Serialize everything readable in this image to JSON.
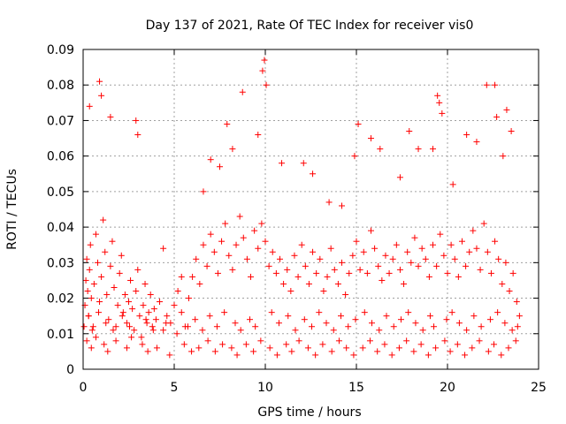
{
  "chart_data": {
    "type": "scatter",
    "title": "Day 137 of 2021, Rate Of TEC Index for receiver vis0",
    "xlabel": "GPS time / hours",
    "ylabel": "ROTI / TECUs",
    "xlim": [
      0,
      25
    ],
    "ylim": [
      0,
      0.09
    ],
    "x_ticks": [
      0,
      5,
      10,
      15,
      20,
      25
    ],
    "x_tick_labels": [
      "0",
      "5",
      "10",
      "15",
      "20",
      "25"
    ],
    "y_ticks": [
      0,
      0.01,
      0.02,
      0.03,
      0.04,
      0.05,
      0.06,
      0.07,
      0.08,
      0.09
    ],
    "y_tick_labels": [
      "0",
      "0.01",
      "0.02",
      "0.03",
      "0.04",
      "0.05",
      "0.06",
      "0.07",
      "0.08",
      "0.09"
    ],
    "grid": true,
    "marker": "+",
    "marker_color": "#ff0000",
    "series": [
      {
        "name": "ROTI",
        "x": [
          0.05,
          0.1,
          0.15,
          0.2,
          0.25,
          0.3,
          0.35,
          0.4,
          0.45,
          0.5,
          0.6,
          0.7,
          0.8,
          0.9,
          1.0,
          1.1,
          1.2,
          1.3,
          1.4,
          1.5,
          1.6,
          1.7,
          1.8,
          1.9,
          2.0,
          2.1,
          2.2,
          2.3,
          2.4,
          2.5,
          2.6,
          2.7,
          2.8,
          2.9,
          3.0,
          3.1,
          3.2,
          3.3,
          3.4,
          3.5,
          3.6,
          3.7,
          3.8,
          3.9,
          4.0,
          4.2,
          4.4,
          4.6,
          4.8,
          5.0,
          5.2,
          5.4,
          5.6,
          5.8,
          6.0,
          6.2,
          6.4,
          6.6,
          6.8,
          7.0,
          7.2,
          7.4,
          7.6,
          7.8,
          8.0,
          8.2,
          8.4,
          8.6,
          8.8,
          9.0,
          9.2,
          9.4,
          9.6,
          9.8,
          10.0,
          10.2,
          10.4,
          10.6,
          10.8,
          11.0,
          11.2,
          11.4,
          11.6,
          11.8,
          12.0,
          12.2,
          12.4,
          12.6,
          12.8,
          13.0,
          13.2,
          13.4,
          13.6,
          13.8,
          14.0,
          14.2,
          14.4,
          14.6,
          14.8,
          15.0,
          15.2,
          15.4,
          15.6,
          15.8,
          16.0,
          16.2,
          16.4,
          16.6,
          16.8,
          17.0,
          17.2,
          17.4,
          17.6,
          17.8,
          18.0,
          18.2,
          18.4,
          18.6,
          18.8,
          19.0,
          19.2,
          19.4,
          19.6,
          19.8,
          20.0,
          20.2,
          20.4,
          20.6,
          20.8,
          21.0,
          21.2,
          21.4,
          21.6,
          21.8,
          22.0,
          22.2,
          22.4,
          22.6,
          22.8,
          23.0,
          23.2,
          23.4,
          23.6,
          23.8,
          23.95,
          0.35,
          0.9,
          1.0,
          1.5,
          2.9,
          3.0,
          4.4,
          5.4,
          6.6,
          7.0,
          7.5,
          7.9,
          8.2,
          8.75,
          9.6,
          9.85,
          9.95,
          10.05,
          10.9,
          12.1,
          12.6,
          13.5,
          14.2,
          14.9,
          15.1,
          15.8,
          16.3,
          17.4,
          17.9,
          18.4,
          19.2,
          19.45,
          19.55,
          19.7,
          20.3,
          21.05,
          21.6,
          22.15,
          22.6,
          22.7,
          23.05,
          23.25,
          23.5,
          0.2,
          0.45,
          0.7,
          1.15,
          1.35,
          1.8,
          2.4,
          2.65,
          3.25,
          3.55,
          4.05,
          4.75,
          5.55,
          5.95,
          6.35,
          6.85,
          7.25,
          7.65,
          8.15,
          8.45,
          8.95,
          9.35,
          9.75,
          10.25,
          10.65,
          11.15,
          11.45,
          11.85,
          12.35,
          12.75,
          13.15,
          13.65,
          14.05,
          14.45,
          14.85,
          15.35,
          15.75,
          16.15,
          16.55,
          16.95,
          17.35,
          17.75,
          18.15,
          18.55,
          18.95,
          19.35,
          19.85,
          20.15,
          20.55,
          20.95,
          21.35,
          21.75,
          22.25,
          22.55,
          22.95,
          23.35,
          23.75,
          0.3,
          0.55,
          0.85,
          1.25,
          1.65,
          2.15,
          2.55,
          3.45,
          3.85,
          4.55,
          5.15,
          5.75,
          6.15,
          6.55,
          6.95,
          7.35,
          7.75,
          8.35,
          8.65,
          9.15,
          9.45,
          10.35,
          10.75,
          11.25,
          11.65,
          12.15,
          12.55,
          12.95,
          13.35,
          13.75,
          14.15,
          14.55,
          14.95,
          15.45,
          15.85,
          16.25,
          16.65,
          17.05,
          17.45,
          17.85,
          18.25,
          18.65,
          19.05,
          19.25,
          19.95,
          20.25,
          20.65,
          21.05,
          21.45,
          21.85,
          22.35,
          22.75,
          23.15,
          23.55,
          23.85
        ],
        "y": [
          0.012,
          0.018,
          0.025,
          0.031,
          0.022,
          0.015,
          0.028,
          0.035,
          0.02,
          0.011,
          0.024,
          0.038,
          0.03,
          0.019,
          0.026,
          0.042,
          0.033,
          0.021,
          0.014,
          0.029,
          0.036,
          0.023,
          0.012,
          0.018,
          0.027,
          0.032,
          0.016,
          0.021,
          0.013,
          0.019,
          0.025,
          0.017,
          0.011,
          0.022,
          0.028,
          0.015,
          0.009,
          0.018,
          0.024,
          0.013,
          0.016,
          0.021,
          0.012,
          0.017,
          0.014,
          0.019,
          0.011,
          0.015,
          0.013,
          0.018,
          0.022,
          0.016,
          0.012,
          0.02,
          0.026,
          0.031,
          0.024,
          0.035,
          0.029,
          0.038,
          0.033,
          0.027,
          0.036,
          0.041,
          0.032,
          0.028,
          0.035,
          0.043,
          0.037,
          0.031,
          0.026,
          0.039,
          0.034,
          0.041,
          0.036,
          0.029,
          0.033,
          0.027,
          0.031,
          0.024,
          0.028,
          0.022,
          0.032,
          0.026,
          0.035,
          0.029,
          0.024,
          0.033,
          0.027,
          0.031,
          0.022,
          0.026,
          0.034,
          0.028,
          0.024,
          0.03,
          0.021,
          0.027,
          0.032,
          0.036,
          0.028,
          0.033,
          0.027,
          0.039,
          0.034,
          0.029,
          0.025,
          0.032,
          0.027,
          0.031,
          0.035,
          0.028,
          0.024,
          0.033,
          0.03,
          0.037,
          0.029,
          0.034,
          0.031,
          0.026,
          0.035,
          0.029,
          0.038,
          0.032,
          0.027,
          0.035,
          0.031,
          0.026,
          0.036,
          0.029,
          0.033,
          0.039,
          0.034,
          0.028,
          0.041,
          0.033,
          0.027,
          0.036,
          0.031,
          0.024,
          0.03,
          0.022,
          0.027,
          0.019,
          0.015,
          0.074,
          0.081,
          0.077,
          0.071,
          0.07,
          0.066,
          0.034,
          0.026,
          0.05,
          0.059,
          0.057,
          0.069,
          0.062,
          0.078,
          0.066,
          0.084,
          0.087,
          0.08,
          0.058,
          0.058,
          0.055,
          0.047,
          0.046,
          0.06,
          0.069,
          0.065,
          0.062,
          0.054,
          0.067,
          0.062,
          0.062,
          0.077,
          0.075,
          0.072,
          0.052,
          0.066,
          0.064,
          0.08,
          0.08,
          0.071,
          0.06,
          0.073,
          0.067,
          0.008,
          0.006,
          0.009,
          0.007,
          0.005,
          0.008,
          0.006,
          0.009,
          0.007,
          0.005,
          0.006,
          0.004,
          0.007,
          0.005,
          0.006,
          0.008,
          0.005,
          0.007,
          0.006,
          0.004,
          0.007,
          0.005,
          0.008,
          0.006,
          0.004,
          0.007,
          0.005,
          0.008,
          0.006,
          0.004,
          0.007,
          0.005,
          0.008,
          0.006,
          0.004,
          0.006,
          0.008,
          0.005,
          0.007,
          0.004,
          0.006,
          0.008,
          0.005,
          0.007,
          0.004,
          0.006,
          0.008,
          0.005,
          0.007,
          0.004,
          0.006,
          0.008,
          0.005,
          0.007,
          0.004,
          0.006,
          0.008,
          0.015,
          0.012,
          0.016,
          0.013,
          0.011,
          0.015,
          0.012,
          0.014,
          0.011,
          0.013,
          0.01,
          0.012,
          0.014,
          0.011,
          0.015,
          0.012,
          0.016,
          0.013,
          0.011,
          0.014,
          0.012,
          0.016,
          0.013,
          0.015,
          0.011,
          0.014,
          0.012,
          0.016,
          0.013,
          0.011,
          0.015,
          0.012,
          0.014,
          0.016,
          0.013,
          0.011,
          0.015,
          0.012,
          0.014,
          0.016,
          0.013,
          0.011,
          0.015,
          0.012,
          0.014,
          0.016,
          0.013,
          0.011,
          0.015,
          0.012,
          0.014,
          0.016,
          0.013,
          0.011,
          0.012
        ]
      }
    ]
  }
}
